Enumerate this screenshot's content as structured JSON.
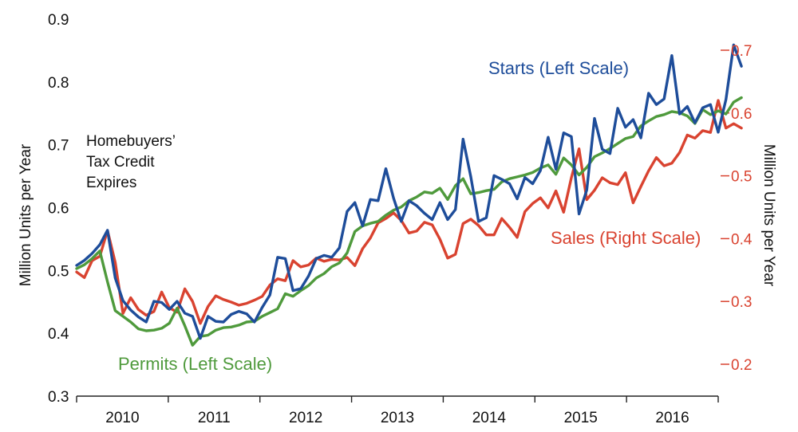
{
  "chart_data": {
    "type": "line",
    "title": "",
    "y_left": {
      "label": "Million Units per Year",
      "range": [
        0.3,
        0.9
      ],
      "ticks": [
        "0.3",
        "0.4",
        "0.5",
        "0.6",
        "0.7",
        "0.8",
        "0.9"
      ]
    },
    "y_right": {
      "label": "Million Units per Year",
      "range": [
        0.2,
        0.7
      ],
      "ticks": [
        "0.2",
        "0.3",
        "0.4",
        "0.5",
        "0.6",
        "0.7"
      ],
      "color": "#d94330"
    },
    "x_axis": {
      "categories": [
        "2010",
        "2011",
        "2012",
        "2013",
        "2014",
        "2015",
        "2016"
      ],
      "start": "2010-01",
      "end": "2016-12"
    },
    "annotation": [
      "Homebuyers’",
      "Tax Credit",
      "Expires"
    ],
    "series": [
      {
        "name": "Starts (Left Scale)",
        "axis": "left",
        "color": "#1e4d9a",
        "values": [
          0.508,
          0.516,
          0.527,
          0.541,
          0.564,
          0.488,
          0.452,
          0.437,
          0.426,
          0.418,
          0.451,
          0.449,
          0.438,
          0.451,
          0.432,
          0.427,
          0.392,
          0.427,
          0.419,
          0.418,
          0.43,
          0.435,
          0.431,
          0.418,
          0.441,
          0.461,
          0.521,
          0.519,
          0.468,
          0.471,
          0.491,
          0.519,
          0.524,
          0.521,
          0.536,
          0.594,
          0.608,
          0.571,
          0.613,
          0.611,
          0.662,
          0.615,
          0.578,
          0.611,
          0.603,
          0.591,
          0.581,
          0.608,
          0.581,
          0.597,
          0.709,
          0.649,
          0.578,
          0.584,
          0.651,
          0.645,
          0.638,
          0.614,
          0.648,
          0.638,
          0.659,
          0.712,
          0.661,
          0.719,
          0.713,
          0.59,
          0.628,
          0.742,
          0.693,
          0.686,
          0.758,
          0.728,
          0.74,
          0.711,
          0.782,
          0.764,
          0.773,
          0.842,
          0.749,
          0.761,
          0.735,
          0.759,
          0.764,
          0.72,
          0.772,
          0.859,
          0.825
        ]
      },
      {
        "name": "Permits (Left Scale)",
        "axis": "left",
        "color": "#4f9a3c",
        "values": [
          0.503,
          0.509,
          0.519,
          0.531,
          0.482,
          0.436,
          0.427,
          0.418,
          0.407,
          0.404,
          0.405,
          0.408,
          0.416,
          0.44,
          0.412,
          0.381,
          0.395,
          0.397,
          0.405,
          0.409,
          0.41,
          0.413,
          0.418,
          0.419,
          0.427,
          0.433,
          0.439,
          0.463,
          0.459,
          0.468,
          0.476,
          0.488,
          0.495,
          0.506,
          0.512,
          0.528,
          0.562,
          0.571,
          0.575,
          0.578,
          0.588,
          0.596,
          0.601,
          0.611,
          0.617,
          0.625,
          0.623,
          0.631,
          0.613,
          0.635,
          0.646,
          0.622,
          0.624,
          0.627,
          0.629,
          0.641,
          0.646,
          0.649,
          0.652,
          0.656,
          0.663,
          0.668,
          0.653,
          0.679,
          0.668,
          0.652,
          0.664,
          0.681,
          0.687,
          0.694,
          0.702,
          0.71,
          0.713,
          0.73,
          0.738,
          0.745,
          0.748,
          0.753,
          0.751,
          0.746,
          0.734,
          0.756,
          0.748,
          0.754,
          0.749,
          0.768,
          0.775
        ]
      },
      {
        "name": "Sales (Right Scale)",
        "axis": "right",
        "color": "#d94330",
        "values": [
          0.347,
          0.338,
          0.365,
          0.372,
          0.413,
          0.362,
          0.281,
          0.306,
          0.287,
          0.278,
          0.284,
          0.315,
          0.29,
          0.283,
          0.32,
          0.3,
          0.265,
          0.292,
          0.309,
          0.303,
          0.299,
          0.294,
          0.297,
          0.302,
          0.308,
          0.326,
          0.336,
          0.333,
          0.365,
          0.355,
          0.358,
          0.369,
          0.364,
          0.367,
          0.366,
          0.37,
          0.357,
          0.384,
          0.401,
          0.425,
          0.432,
          0.441,
          0.429,
          0.409,
          0.412,
          0.426,
          0.422,
          0.399,
          0.369,
          0.375,
          0.424,
          0.431,
          0.421,
          0.406,
          0.406,
          0.432,
          0.418,
          0.402,
          0.443,
          0.456,
          0.465,
          0.449,
          0.476,
          0.442,
          0.497,
          0.543,
          0.462,
          0.477,
          0.497,
          0.489,
          0.486,
          0.505,
          0.457,
          0.483,
          0.508,
          0.529,
          0.516,
          0.52,
          0.537,
          0.565,
          0.56,
          0.572,
          0.569,
          0.62,
          0.576,
          0.583,
          0.576
        ]
      }
    ]
  }
}
